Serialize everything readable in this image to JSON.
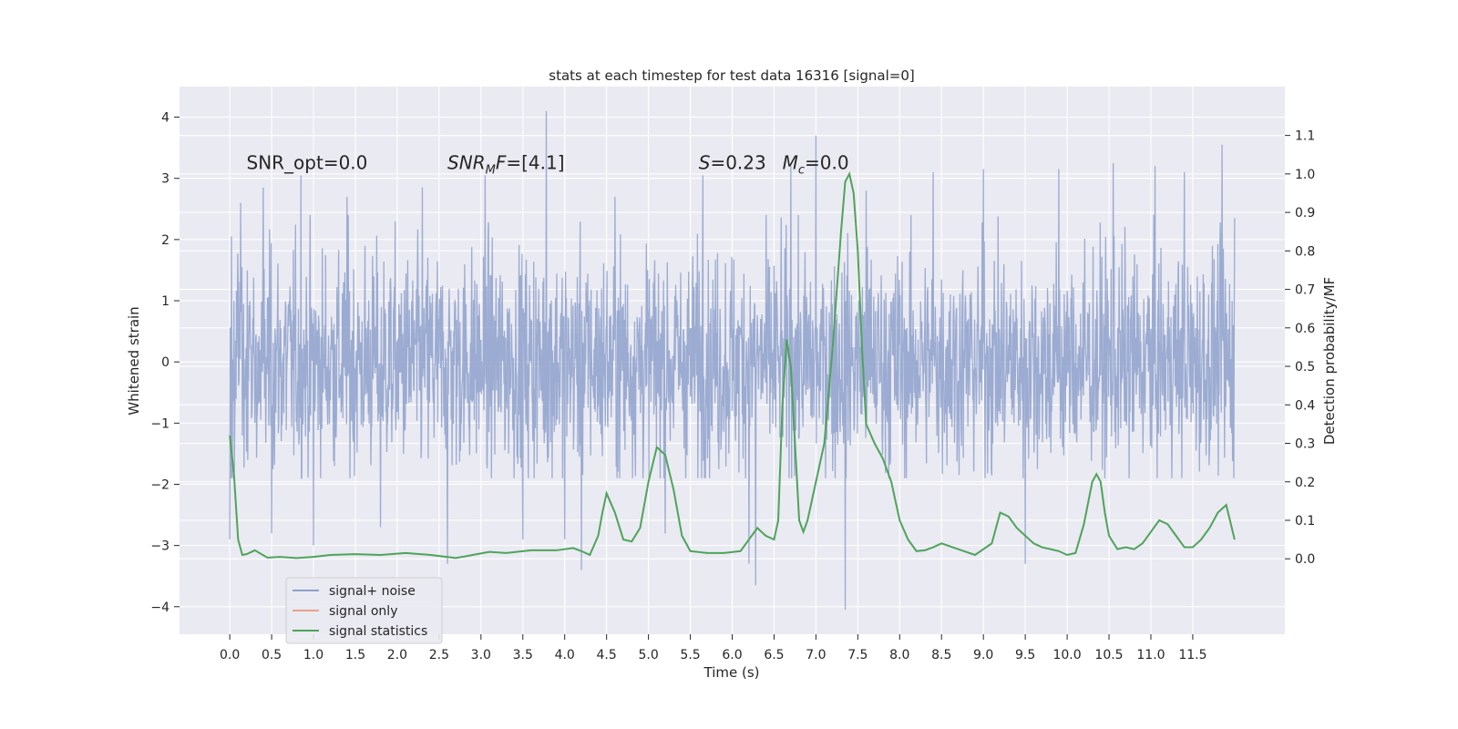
{
  "chart_data": {
    "type": "line",
    "title": "stats at each timestep for test data 16316 [signal=0]",
    "xlabel": "Time (s)",
    "ylabel": "Whitened strain",
    "y2label": "Detection probability/MF",
    "xlim": [
      -0.6,
      12.6
    ],
    "ylim": [
      -4.45,
      4.5
    ],
    "y2lim": [
      -0.196,
      1.227
    ],
    "x_ticks": [
      0.0,
      0.5,
      1.0,
      1.5,
      2.0,
      2.5,
      3.0,
      3.5,
      4.0,
      4.5,
      5.0,
      5.5,
      6.0,
      6.5,
      7.0,
      7.5,
      8.0,
      8.5,
      9.0,
      9.5,
      10.0,
      10.5,
      11.0,
      11.5
    ],
    "x_tick_labels": [
      "0.0",
      "0.5",
      "1.0",
      "1.5",
      "2.0",
      "2.5",
      "3.0",
      "3.5",
      "4.0",
      "4.5",
      "5.0",
      "5.5",
      "6.0",
      "6.5",
      "7.0",
      "7.5",
      "8.0",
      "8.5",
      "9.0",
      "9.5",
      "10.0",
      "10.5",
      "11.0",
      "11.5"
    ],
    "y_ticks": [
      -4,
      -3,
      -2,
      -1,
      0,
      1,
      2,
      3,
      4
    ],
    "y_tick_labels": [
      "−4",
      "−3",
      "−2",
      "−1",
      "0",
      "1",
      "2",
      "3",
      "4"
    ],
    "y2_ticks": [
      0.0,
      0.1,
      0.2,
      0.3,
      0.4,
      0.5,
      0.6,
      0.7,
      0.8,
      0.9,
      1.0,
      1.1
    ],
    "y2_tick_labels": [
      "0.0",
      "0.1",
      "0.2",
      "0.3",
      "0.4",
      "0.5",
      "0.6",
      "0.7",
      "0.8",
      "0.9",
      "1.0",
      "1.1"
    ],
    "grid": true,
    "legend_position": "lower-left",
    "colors": {
      "background": "#eaeaf2",
      "grid": "#ffffff",
      "signal_noise": "#8da0cb",
      "signal_only": "#e8a48a",
      "statistics": "#4fa35b"
    },
    "annotations": [
      {
        "x": 0.2,
        "y": 3.15,
        "text": "SNR_opt=0.0",
        "italic_part": ""
      },
      {
        "x": 2.6,
        "y": 3.15,
        "italic_part": "SNR",
        "sub": "M",
        "italic_part2": "F",
        "rest": "=[4.1]"
      },
      {
        "x": 5.6,
        "y": 3.15,
        "italic_part": "S",
        "rest": "=0.23"
      },
      {
        "x": 6.6,
        "y": 3.15,
        "italic_part": "M",
        "sub": "c",
        "rest": "=0.0"
      }
    ],
    "series": [
      {
        "name": "signal+ noise",
        "axis": "left",
        "t_start": 0.0,
        "t_end": 12.0,
        "typical_envelope": [
          -1.9,
          2.4
        ],
        "spikes": [
          {
            "t": 0.0,
            "y": -2.9
          },
          {
            "t": 0.13,
            "y": 2.6
          },
          {
            "t": 0.4,
            "y": 2.85
          },
          {
            "t": 0.5,
            "y": -2.8
          },
          {
            "t": 0.85,
            "y": 3.05
          },
          {
            "t": 1.0,
            "y": -3.0
          },
          {
            "t": 1.4,
            "y": 2.7
          },
          {
            "t": 1.8,
            "y": -2.7
          },
          {
            "t": 2.3,
            "y": 2.85
          },
          {
            "t": 2.6,
            "y": -3.3
          },
          {
            "t": 3.05,
            "y": 3.05
          },
          {
            "t": 3.5,
            "y": -2.9
          },
          {
            "t": 3.78,
            "y": 4.1
          },
          {
            "t": 4.0,
            "y": -2.9
          },
          {
            "t": 4.2,
            "y": -3.4
          },
          {
            "t": 4.6,
            "y": 2.7
          },
          {
            "t": 5.2,
            "y": -2.8
          },
          {
            "t": 5.65,
            "y": 3.05
          },
          {
            "t": 6.2,
            "y": -3.3
          },
          {
            "t": 6.28,
            "y": -3.65
          },
          {
            "t": 6.7,
            "y": 3.2
          },
          {
            "t": 7.0,
            "y": 3.7
          },
          {
            "t": 7.35,
            "y": -4.05
          },
          {
            "t": 7.6,
            "y": 2.8
          },
          {
            "t": 8.4,
            "y": 3.1
          },
          {
            "t": 9.0,
            "y": 3.15
          },
          {
            "t": 9.5,
            "y": -3.3
          },
          {
            "t": 9.9,
            "y": 3.15
          },
          {
            "t": 10.55,
            "y": 3.25
          },
          {
            "t": 11.05,
            "y": 3.2
          },
          {
            "t": 11.4,
            "y": 3.1
          },
          {
            "t": 11.85,
            "y": 3.55
          },
          {
            "t": 12.0,
            "y": 2.35
          }
        ]
      },
      {
        "name": "signal only",
        "axis": "left",
        "x": [],
        "y": []
      },
      {
        "name": "signal statistics",
        "axis": "right",
        "x": [
          0.0,
          0.05,
          0.1,
          0.15,
          0.2,
          0.3,
          0.45,
          0.6,
          0.8,
          1.0,
          1.2,
          1.5,
          1.8,
          2.1,
          2.4,
          2.7,
          2.9,
          3.1,
          3.3,
          3.6,
          3.9,
          4.1,
          4.2,
          4.3,
          4.4,
          4.45,
          4.5,
          4.6,
          4.7,
          4.8,
          4.9,
          5.0,
          5.1,
          5.2,
          5.3,
          5.4,
          5.5,
          5.7,
          5.9,
          6.1,
          6.2,
          6.3,
          6.4,
          6.5,
          6.55,
          6.6,
          6.65,
          6.7,
          6.75,
          6.8,
          6.85,
          6.9,
          7.0,
          7.1,
          7.2,
          7.3,
          7.35,
          7.4,
          7.45,
          7.5,
          7.55,
          7.6,
          7.7,
          7.8,
          7.9,
          8.0,
          8.1,
          8.2,
          8.3,
          8.4,
          8.5,
          8.7,
          8.9,
          9.1,
          9.2,
          9.3,
          9.4,
          9.5,
          9.6,
          9.7,
          9.8,
          9.9,
          10.0,
          10.1,
          10.2,
          10.3,
          10.35,
          10.4,
          10.45,
          10.5,
          10.6,
          10.7,
          10.8,
          10.9,
          11.0,
          11.1,
          11.2,
          11.3,
          11.4,
          11.5,
          11.6,
          11.7,
          11.8,
          11.9,
          12.0
        ],
        "y": [
          0.32,
          0.22,
          0.05,
          0.01,
          0.012,
          0.022,
          0.003,
          0.005,
          0.002,
          0.005,
          0.01,
          0.012,
          0.01,
          0.015,
          0.01,
          0.002,
          0.01,
          0.018,
          0.015,
          0.022,
          0.022,
          0.028,
          0.02,
          0.01,
          0.06,
          0.12,
          0.17,
          0.12,
          0.05,
          0.045,
          0.08,
          0.2,
          0.29,
          0.27,
          0.18,
          0.06,
          0.02,
          0.015,
          0.015,
          0.02,
          0.05,
          0.08,
          0.06,
          0.05,
          0.1,
          0.4,
          0.57,
          0.5,
          0.3,
          0.1,
          0.07,
          0.1,
          0.2,
          0.3,
          0.55,
          0.85,
          0.98,
          1.0,
          0.95,
          0.8,
          0.55,
          0.35,
          0.3,
          0.26,
          0.2,
          0.1,
          0.05,
          0.02,
          0.022,
          0.03,
          0.04,
          0.025,
          0.01,
          0.04,
          0.12,
          0.11,
          0.08,
          0.06,
          0.04,
          0.03,
          0.025,
          0.02,
          0.01,
          0.015,
          0.09,
          0.2,
          0.22,
          0.2,
          0.12,
          0.06,
          0.025,
          0.03,
          0.025,
          0.04,
          0.07,
          0.1,
          0.09,
          0.06,
          0.03,
          0.03,
          0.05,
          0.08,
          0.12,
          0.14,
          0.05
        ]
      }
    ]
  }
}
